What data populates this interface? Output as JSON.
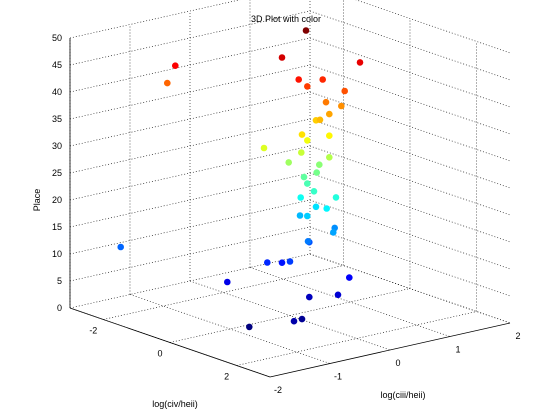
{
  "chart_data": {
    "type": "scatter",
    "title": "3D Plot with color",
    "xlabel": "log(civ/heii)",
    "ylabel": "log(ciii/heii)",
    "zlabel": "Place",
    "x_ticks": [
      "-2",
      "0",
      "2"
    ],
    "y_ticks": [
      "-2",
      "-1",
      "0",
      "1",
      "2"
    ],
    "z_ticks": [
      "0",
      "5",
      "10",
      "15",
      "20",
      "25",
      "30",
      "35",
      "40",
      "45",
      "50"
    ],
    "xlim": [
      -3,
      3
    ],
    "ylim": [
      -2,
      2
    ],
    "zlim": [
      0,
      50
    ],
    "grid": true,
    "colormap": "jet",
    "color_by": "z",
    "points": [
      {
        "x": 0.4,
        "y": -0.9,
        "z": 1
      },
      {
        "x": 0.9,
        "y": -0.3,
        "z": 2
      },
      {
        "x": 1.2,
        "y": -0.6,
        "z": 3
      },
      {
        "x": 0.4,
        "y": 0.1,
        "z": 4
      },
      {
        "x": 0.9,
        "y": 0.3,
        "z": 5
      },
      {
        "x": -0.8,
        "y": -0.6,
        "z": 6
      },
      {
        "x": 0.7,
        "y": 0.6,
        "z": 7
      },
      {
        "x": -0.6,
        "y": 0.2,
        "z": 8
      },
      {
        "x": -0.5,
        "y": -0.1,
        "z": 9
      },
      {
        "x": 0.0,
        "y": 0.0,
        "z": 10
      },
      {
        "x": -0.5,
        "y": 0.6,
        "z": 11
      },
      {
        "x": -2.2,
        "y": -1.6,
        "z": 12
      },
      {
        "x": 0.0,
        "y": 0.3,
        "z": 13
      },
      {
        "x": -0.1,
        "y": 0.8,
        "z": 14
      },
      {
        "x": 0.4,
        "y": 0.5,
        "z": 15
      },
      {
        "x": -0.6,
        "y": 0.5,
        "z": 16
      },
      {
        "x": -0.2,
        "y": 0.4,
        "z": 17
      },
      {
        "x": -0.3,
        "y": 0.6,
        "z": 18
      },
      {
        "x": 0.2,
        "y": 0.5,
        "z": 19
      },
      {
        "x": -0.4,
        "y": 0.4,
        "z": 20
      },
      {
        "x": 0.3,
        "y": 0.6,
        "z": 21
      },
      {
        "x": 0.0,
        "y": 0.4,
        "z": 22
      },
      {
        "x": -0.2,
        "y": 0.4,
        "z": 23
      },
      {
        "x": -0.3,
        "y": 0.4,
        "z": 24
      },
      {
        "x": -0.1,
        "y": 0.5,
        "z": 25
      },
      {
        "x": -0.2,
        "y": 0.6,
        "z": 26
      },
      {
        "x": -0.4,
        "y": 0.2,
        "z": 27
      },
      {
        "x": 0.1,
        "y": 0.6,
        "z": 28
      },
      {
        "x": -0.2,
        "y": 0.3,
        "z": 29
      },
      {
        "x": -0.6,
        "y": -0.1,
        "z": 30
      },
      {
        "x": -0.2,
        "y": 0.4,
        "z": 31
      },
      {
        "x": 0.1,
        "y": 0.6,
        "z": 32
      },
      {
        "x": 0.0,
        "y": 0.2,
        "z": 33
      },
      {
        "x": -0.3,
        "y": 0.6,
        "z": 34
      },
      {
        "x": 0.0,
        "y": 0.5,
        "z": 35
      },
      {
        "x": 0.1,
        "y": 0.6,
        "z": 36
      },
      {
        "x": 0.1,
        "y": 0.8,
        "z": 37
      },
      {
        "x": 0.0,
        "y": 0.6,
        "z": 38
      },
      {
        "x": -2.6,
        "y": -0.6,
        "z": 39
      },
      {
        "x": 0.2,
        "y": 0.8,
        "z": 40
      },
      {
        "x": -0.2,
        "y": 0.4,
        "z": 41
      },
      {
        "x": -0.1,
        "y": 0.6,
        "z": 42
      },
      {
        "x": -0.1,
        "y": 0.2,
        "z": 43
      },
      {
        "x": -2.0,
        "y": -0.8,
        "z": 44
      },
      {
        "x": 0.3,
        "y": 1.0,
        "z": 45
      },
      {
        "x": -0.6,
        "y": 0.2,
        "z": 46
      },
      {
        "x": -0.6,
        "y": 0.6,
        "z": 50
      }
    ]
  }
}
